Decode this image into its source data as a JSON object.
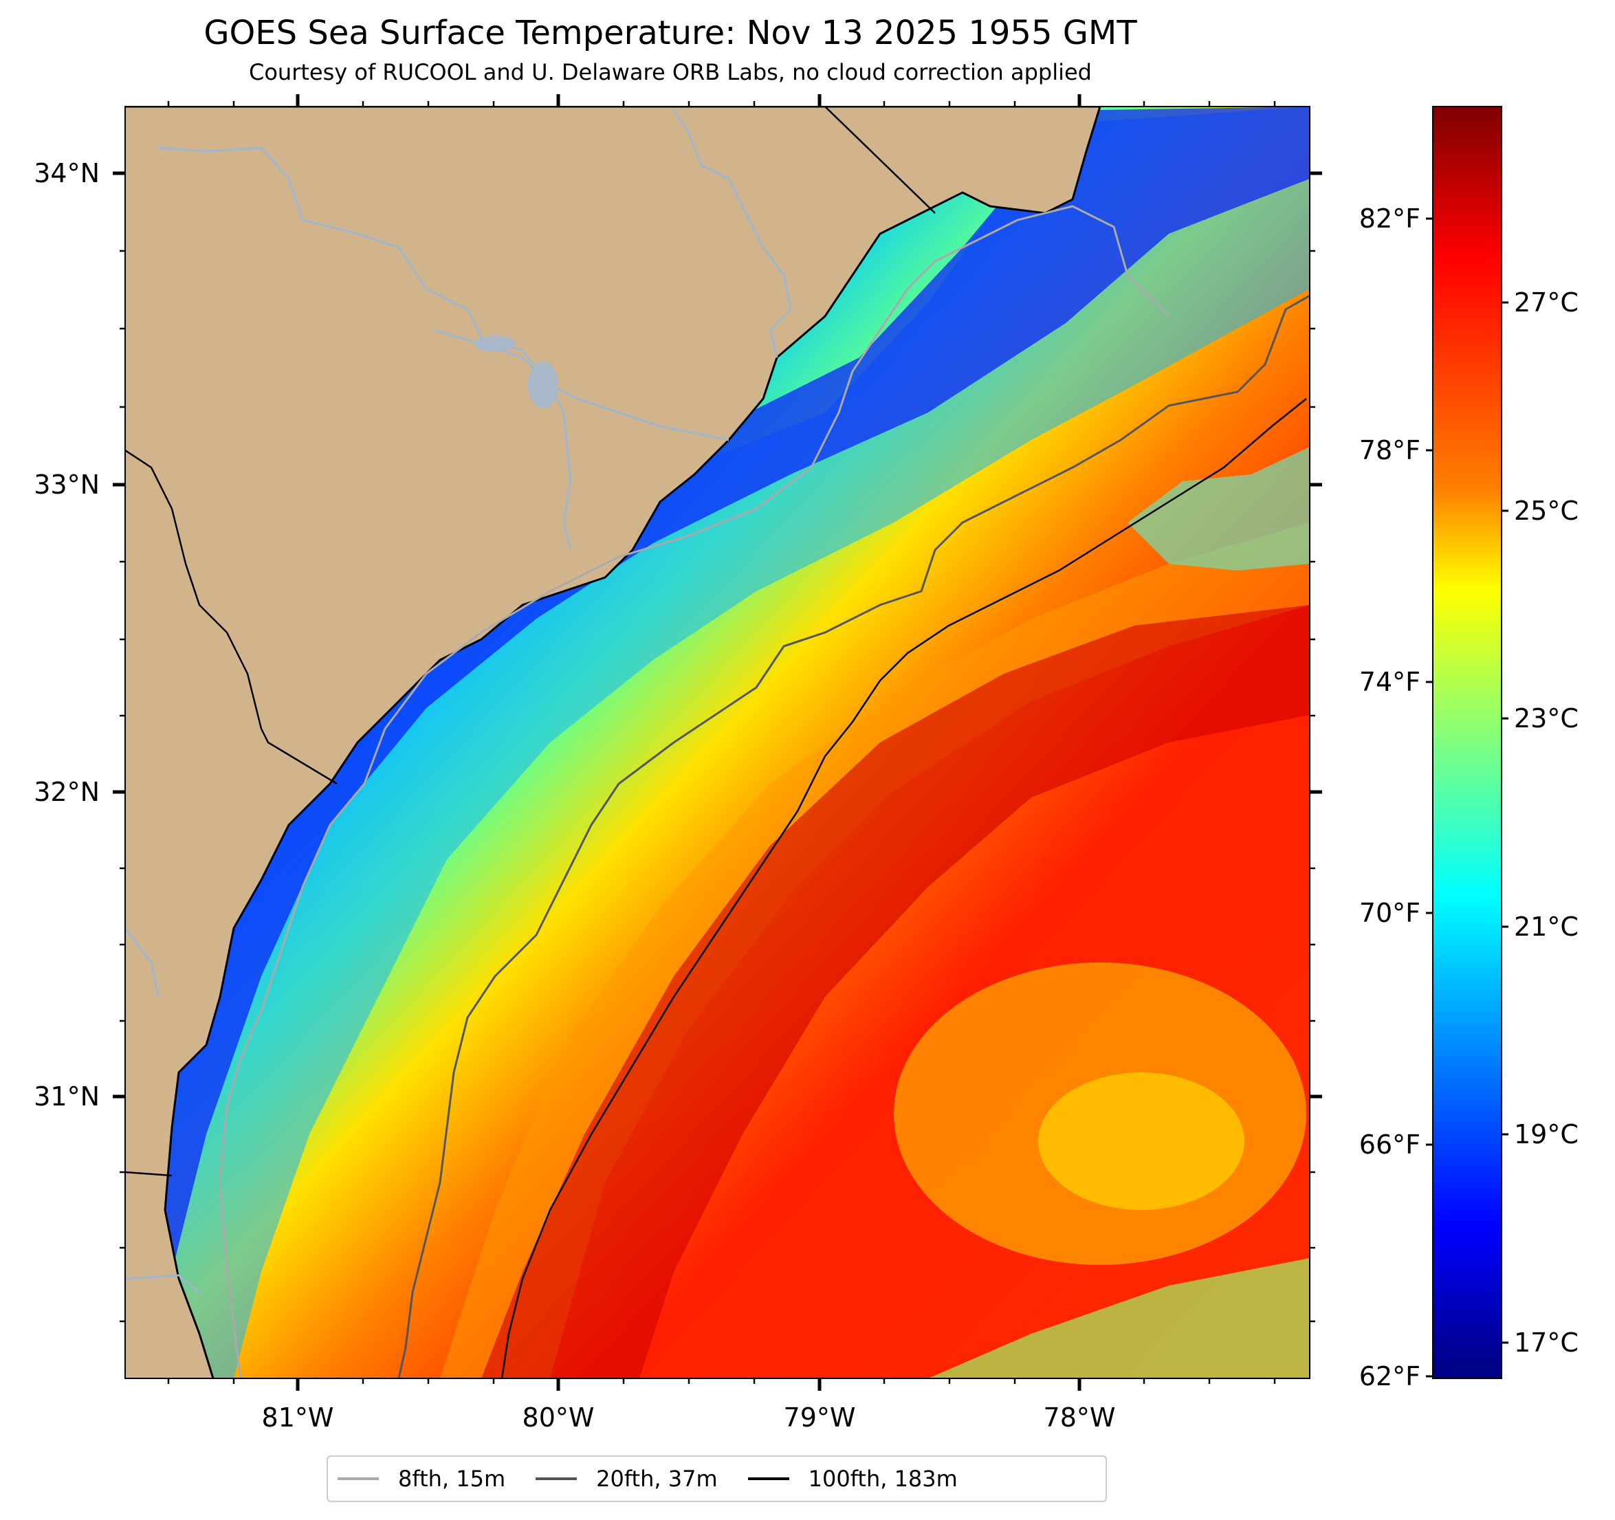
{
  "header": {
    "title": "GOES Sea Surface Temperature: Nov 13 2025 1955 GMT",
    "subtitle": "Courtesy of RUCOOL and U. Delaware ORB Labs, no cloud correction applied"
  },
  "map": {
    "latitude_labels": [
      "34°N",
      "33°N",
      "32°N",
      "31°N"
    ],
    "longitude_labels": [
      "81°W",
      "80°W",
      "79°W",
      "78°W"
    ],
    "land_color": "#d2b48c",
    "river_color": "#9fb6cd",
    "coastline_color": "#000000"
  },
  "colorbar": {
    "fahrenheit_labels": [
      "82°F",
      "78°F",
      "74°F",
      "70°F",
      "66°F",
      "62°F"
    ],
    "celsius_labels": [
      "27°C",
      "25°C",
      "23°C",
      "21°C",
      "19°C",
      "17°C"
    ],
    "colors": [
      "#800000",
      "#ff0000",
      "#ff7f00",
      "#ffff00",
      "#7fff7f",
      "#00ffff",
      "#007fff",
      "#0000ff",
      "#000080"
    ]
  },
  "legend": {
    "items": [
      {
        "label": "8fth, 15m",
        "color": "#aaaaaa"
      },
      {
        "label": "20fth, 37m",
        "color": "#555555"
      },
      {
        "label": "100fth, 183m",
        "color": "#000000"
      }
    ]
  }
}
